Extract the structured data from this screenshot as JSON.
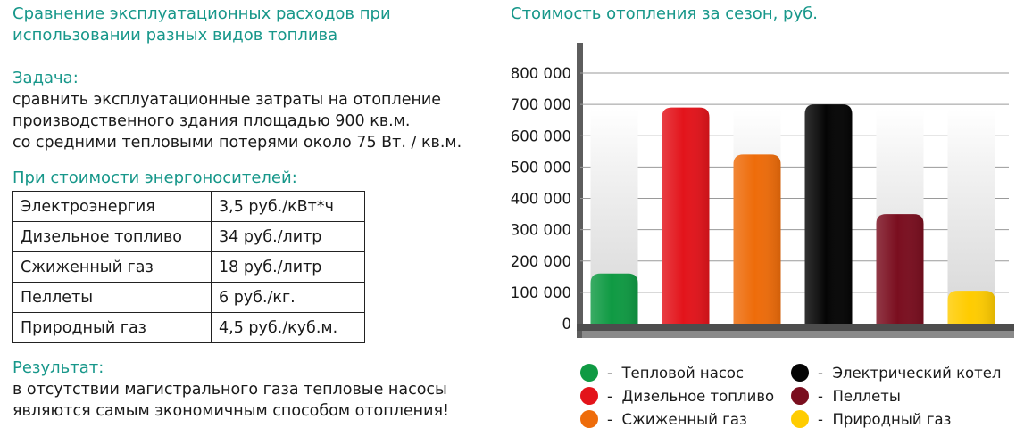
{
  "left": {
    "title_line1": "Сравнение эксплуатационных расходов при",
    "title_line2": "использовании разных видов топлива",
    "task_title": "Задача:",
    "task_lines": [
      "сравнить эксплуатационные затраты на отопление",
      "производственного здания площадью 900 кв.м.",
      "со средними тепловыми потерями около 75 Вт. / кв.м."
    ],
    "prices_title": "При стоимости энергоносителей:",
    "prices": [
      {
        "name": "Электроэнергия",
        "price": "3,5 руб./кВт*ч"
      },
      {
        "name": "Дизельное топливо",
        "price": "34 руб./литр"
      },
      {
        "name": "Сжиженный газ",
        "price": "18 руб./литр"
      },
      {
        "name": "Пеллеты",
        "price": "6 руб./кг."
      },
      {
        "name": "Природный газ",
        "price": "4,5 руб./куб.м."
      }
    ],
    "result_title": "Результат:",
    "result_lines": [
      "в отсутствии магистрального газа тепловые насосы",
      "являются самым экономичным способом отопления!"
    ]
  },
  "chart_data": {
    "type": "bar",
    "title": "Стоимость отопления за сезон, руб.",
    "xlabel": "",
    "ylabel": "",
    "ylim": [
      0,
      800000
    ],
    "grid": true,
    "legend_position": "bottom",
    "y_ticks": [
      "0",
      "100 000",
      "200 000",
      "300 000",
      "400 000",
      "500 000",
      "600 000",
      "700 000",
      "800 000"
    ],
    "categories": [
      "Тепловой насос",
      "Дизельное топливо",
      "Сжиженный газ",
      "Электрический котел",
      "Пеллеты",
      "Природный газ"
    ],
    "values": [
      160000,
      690000,
      540000,
      700000,
      350000,
      105000
    ],
    "colors": [
      "#0f9a43",
      "#e3141b",
      "#ee6c0a",
      "#050505",
      "#7a0e1f",
      "#ffcc00"
    ]
  },
  "legend": [
    {
      "label": "Тепловой насос",
      "color": "#0f9a43"
    },
    {
      "label": "Дизельное топливо",
      "color": "#e3141b"
    },
    {
      "label": "Сжиженный газ",
      "color": "#ee6c0a"
    },
    {
      "label": "Электрический котел",
      "color": "#050505"
    },
    {
      "label": "Пеллеты",
      "color": "#7a0e1f"
    },
    {
      "label": "Природный газ",
      "color": "#ffcc00"
    }
  ],
  "legend_dash": "-"
}
